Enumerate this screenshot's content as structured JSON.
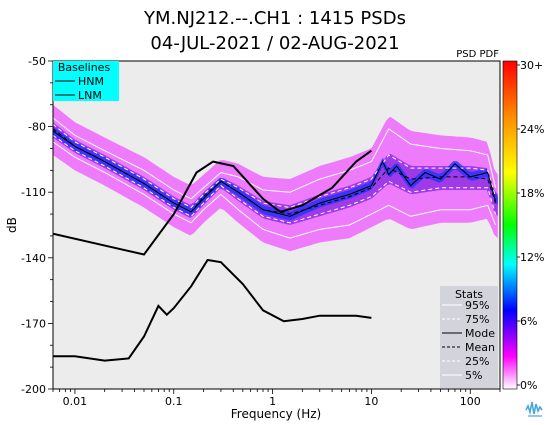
{
  "chart_data": {
    "type": "heatmap",
    "title_line1": "YM.NJ212.--.CH1 : 1415 PSDs",
    "title_line2": "04-JUL-2021 / 02-AUG-2021",
    "xlabel": "Frequency (Hz)",
    "ylabel": "dB",
    "x_scale": "log",
    "xlim": [
      0.006,
      200
    ],
    "ylim": [
      -200,
      -50
    ],
    "x_ticks": [
      {
        "value": 0.01,
        "label": "0.01"
      },
      {
        "value": 0.1,
        "label": "0.1"
      },
      {
        "value": 1,
        "label": "1"
      },
      {
        "value": 10,
        "label": "10"
      },
      {
        "value": 100,
        "label": "100"
      }
    ],
    "y_ticks": [
      {
        "value": -50,
        "label": "-50"
      },
      {
        "value": -80,
        "label": "-80"
      },
      {
        "value": -110,
        "label": "-110"
      },
      {
        "value": -140,
        "label": "-140"
      },
      {
        "value": -170,
        "label": "-170"
      },
      {
        "value": -200,
        "label": "-200"
      }
    ],
    "pdf_label": "PSD PDF",
    "colorbar": {
      "ticks": [
        "30+",
        "24%",
        "18%",
        "12%",
        "6%",
        "0%"
      ],
      "colors": [
        "#ff0000",
        "#ff8c00",
        "#ffff00",
        "#00ff00",
        "#00ffff",
        "#0000ff",
        "#ff00ff",
        "#ffffff"
      ]
    },
    "baselines_legend": {
      "title": "Baselines",
      "items": [
        "HNM",
        "LNM"
      ],
      "color": "#00ffff"
    },
    "stats_legend": {
      "title": "Stats",
      "items": [
        {
          "label": "95%",
          "style": "solid-white"
        },
        {
          "label": "75%",
          "style": "dashed-white"
        },
        {
          "label": "Mode",
          "style": "solid-black"
        },
        {
          "label": "Mean",
          "style": "dashed-black"
        },
        {
          "label": "25%",
          "style": "dashed-white"
        },
        {
          "label": "5%",
          "style": "solid-white"
        }
      ]
    },
    "series": [
      {
        "key": "hnm",
        "style": "solid-black",
        "x": [
          0.006,
          0.05,
          0.1,
          0.17,
          0.25,
          0.4,
          0.8,
          1.2,
          2,
          4,
          7,
          10
        ],
        "y": [
          -129,
          -138.5,
          -120,
          -101,
          -96,
          -98,
          -113,
          -119,
          -116,
          -108,
          -96,
          -91
        ]
      },
      {
        "key": "lnm",
        "style": "solid-black",
        "x": [
          0.006,
          0.01,
          0.02,
          0.035,
          0.05,
          0.07,
          0.085,
          0.1,
          0.15,
          0.22,
          0.3,
          0.5,
          0.8,
          1.3,
          2,
          3,
          5,
          7,
          10
        ],
        "y": [
          -185,
          -185,
          -187,
          -186,
          -176,
          -162,
          -166,
          -163,
          -153,
          -141,
          -142,
          -152,
          -164,
          -169,
          -168,
          -166.5,
          -166.5,
          -166.5,
          -167.5
        ]
      },
      {
        "key": "p95",
        "style": "solid-white",
        "x": [
          0.006,
          0.01,
          0.02,
          0.05,
          0.1,
          0.15,
          0.2,
          0.3,
          0.45,
          0.8,
          1.5,
          3,
          6,
          10,
          15,
          25,
          50,
          100,
          150,
          180
        ],
        "y": [
          -76,
          -84,
          -91,
          -100,
          -109,
          -113,
          -108,
          -101,
          -103,
          -109,
          -110,
          -104,
          -100,
          -96,
          -81,
          -88,
          -90,
          -91,
          -93,
          -108
        ]
      },
      {
        "key": "p75",
        "style": "dashed-white",
        "x": [
          0.006,
          0.01,
          0.02,
          0.05,
          0.1,
          0.15,
          0.2,
          0.3,
          0.45,
          0.8,
          1.5,
          3,
          6,
          10,
          15,
          25,
          50,
          100,
          150,
          180
        ],
        "y": [
          -79,
          -87,
          -94,
          -104,
          -113,
          -117,
          -111,
          -104,
          -108,
          -115,
          -117,
          -112,
          -108,
          -104,
          -93,
          -99,
          -99,
          -99,
          -100,
          -112
        ]
      },
      {
        "key": "mode",
        "style": "solid-black",
        "x": [
          0.006,
          0.01,
          0.02,
          0.05,
          0.1,
          0.15,
          0.2,
          0.3,
          0.45,
          0.8,
          1.5,
          3,
          6,
          10,
          13,
          15,
          18,
          25,
          35,
          50,
          70,
          100,
          150,
          180
        ],
        "y": [
          -82,
          -89,
          -96,
          -106,
          -115,
          -119,
          -113,
          -105,
          -110,
          -118,
          -121,
          -115,
          -111,
          -107,
          -96,
          -102,
          -98,
          -107,
          -101,
          -104,
          -97,
          -103,
          -101,
          -114
        ]
      },
      {
        "key": "mean",
        "style": "dashed-black",
        "x": [
          0.006,
          0.01,
          0.02,
          0.05,
          0.1,
          0.15,
          0.2,
          0.3,
          0.45,
          0.8,
          1.5,
          3,
          6,
          10,
          15,
          25,
          50,
          100,
          150,
          180
        ],
        "y": [
          -81,
          -89,
          -96,
          -106,
          -115,
          -119,
          -112,
          -105,
          -110,
          -118,
          -120,
          -116,
          -112,
          -108,
          -99,
          -104,
          -103,
          -103,
          -104,
          -115
        ]
      },
      {
        "key": "p25",
        "style": "dashed-white",
        "x": [
          0.006,
          0.01,
          0.02,
          0.05,
          0.1,
          0.15,
          0.2,
          0.3,
          0.45,
          0.8,
          1.5,
          3,
          6,
          10,
          15,
          25,
          50,
          100,
          150,
          180
        ],
        "y": [
          -84,
          -91,
          -98,
          -108,
          -117,
          -121,
          -115,
          -107,
          -113,
          -121,
          -124,
          -120,
          -116,
          -112,
          -105,
          -110,
          -108,
          -108,
          -108,
          -120
        ]
      },
      {
        "key": "p5",
        "style": "solid-white",
        "x": [
          0.006,
          0.01,
          0.02,
          0.05,
          0.1,
          0.15,
          0.2,
          0.3,
          0.45,
          0.8,
          1.5,
          3,
          6,
          10,
          15,
          25,
          50,
          100,
          150,
          180
        ],
        "y": [
          -87,
          -94,
          -101,
          -111,
          -120,
          -124,
          -118,
          -111,
          -118,
          -127,
          -131,
          -127,
          -125,
          -120,
          -116,
          -121,
          -118,
          -118,
          -116,
          -125
        ]
      }
    ],
    "grid": false,
    "legend_positions": [
      "top-left",
      "bottom-right"
    ]
  },
  "logo": {
    "name": "iris-logo"
  }
}
